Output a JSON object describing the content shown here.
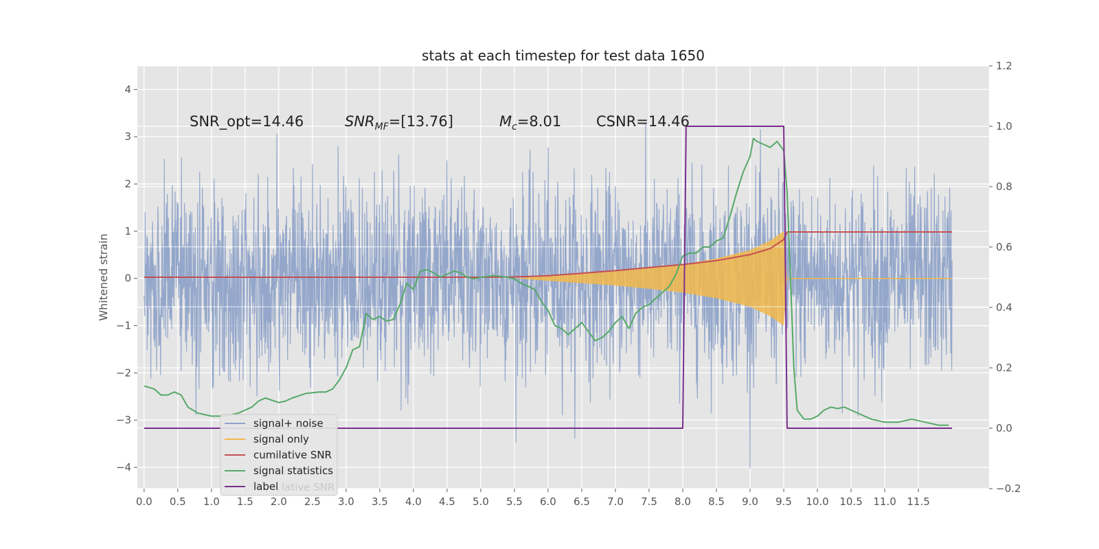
{
  "chart_data": {
    "type": "line",
    "title": "stats at each timestep for test data 1650",
    "ylabel": "Whitened strain",
    "xlabel": "",
    "xlim": [
      -0.1,
      12.55
    ],
    "ylim": [
      -4.45,
      4.5
    ],
    "y2lim": [
      -0.2,
      1.2
    ],
    "x_ticks": [
      "0.0",
      "0.5",
      "1.0",
      "1.5",
      "2.0",
      "2.5",
      "3.0",
      "3.5",
      "4.0",
      "4.5",
      "5.0",
      "5.5",
      "6.0",
      "6.5",
      "7.0",
      "7.5",
      "8.0",
      "8.5",
      "9.0",
      "9.5",
      "10.0",
      "10.5",
      "11.0",
      "11.5"
    ],
    "y_ticks": [
      "4",
      "3",
      "2",
      "1",
      "0",
      "−1",
      "−2",
      "−3",
      "−4"
    ],
    "y2_ticks": [
      "1.2",
      "1.0",
      "0.8",
      "0.6",
      "0.4",
      "0.2",
      "0.0",
      "−0.2"
    ],
    "grid": true,
    "legend_position": "lower-left",
    "annotations": [
      {
        "text": "SNR_opt=14.46"
      },
      {
        "text": "SNR_MF=[13.76]"
      },
      {
        "text": "M_c=8.01"
      },
      {
        "text": "CSNR=14.46"
      }
    ],
    "series": [
      {
        "name": "signal+ noise",
        "color": "#8fa3c9",
        "axis": "left",
        "x_range": [
          0.0,
          12.0
        ],
        "noise_std": 1.0
      },
      {
        "name": "signal only",
        "color": "#f2b84b",
        "axis": "left",
        "envelope_x": [
          5.5,
          6.0,
          6.5,
          7.0,
          7.5,
          8.0,
          8.5,
          9.0,
          9.3,
          9.5,
          9.55,
          12.0
        ],
        "envelope_y": [
          0.0,
          0.05,
          0.1,
          0.15,
          0.22,
          0.3,
          0.42,
          0.6,
          0.8,
          1.0,
          0.0,
          0.0
        ]
      },
      {
        "name": "cumilative SNR",
        "color": "#c44e52",
        "axis": "right",
        "x": [
          0.0,
          3.0,
          5.0,
          5.5,
          6.0,
          6.5,
          7.0,
          7.5,
          8.0,
          8.5,
          9.0,
          9.3,
          9.5,
          9.55,
          12.0
        ],
        "y": [
          0.5,
          0.5,
          0.5,
          0.501,
          0.505,
          0.513,
          0.522,
          0.532,
          0.542,
          0.555,
          0.575,
          0.595,
          0.625,
          0.65,
          0.65
        ]
      },
      {
        "name": "signal statistics",
        "color": "#55a868",
        "axis": "right",
        "x": [
          0.0,
          0.15,
          0.25,
          0.35,
          0.45,
          0.55,
          0.65,
          0.8,
          1.0,
          1.2,
          1.4,
          1.6,
          1.7,
          1.8,
          2.0,
          2.1,
          2.2,
          2.4,
          2.6,
          2.7,
          2.8,
          2.9,
          3.0,
          3.1,
          3.2,
          3.3,
          3.4,
          3.5,
          3.6,
          3.7,
          3.8,
          3.9,
          4.0,
          4.1,
          4.2,
          4.3,
          4.4,
          4.5,
          4.6,
          4.7,
          4.8,
          4.9,
          5.0,
          5.2,
          5.4,
          5.5,
          5.6,
          5.8,
          5.9,
          6.0,
          6.1,
          6.2,
          6.3,
          6.4,
          6.5,
          6.6,
          6.7,
          6.8,
          6.9,
          7.0,
          7.1,
          7.2,
          7.3,
          7.4,
          7.5,
          7.6,
          7.7,
          7.8,
          7.9,
          8.0,
          8.1,
          8.2,
          8.3,
          8.4,
          8.5,
          8.6,
          8.7,
          8.8,
          8.9,
          9.0,
          9.05,
          9.1,
          9.2,
          9.3,
          9.4,
          9.5,
          9.55,
          9.6,
          9.65,
          9.7,
          9.8,
          9.9,
          10.0,
          10.1,
          10.2,
          10.3,
          10.4,
          10.5,
          10.6,
          10.8,
          11.0,
          11.2,
          11.4,
          11.6,
          11.8,
          11.95
        ],
        "y": [
          0.14,
          0.13,
          0.11,
          0.11,
          0.12,
          0.11,
          0.07,
          0.05,
          0.04,
          0.04,
          0.05,
          0.07,
          0.09,
          0.1,
          0.085,
          0.09,
          0.1,
          0.115,
          0.12,
          0.12,
          0.13,
          0.16,
          0.2,
          0.26,
          0.27,
          0.38,
          0.36,
          0.37,
          0.355,
          0.36,
          0.41,
          0.48,
          0.46,
          0.52,
          0.525,
          0.515,
          0.5,
          0.51,
          0.52,
          0.515,
          0.5,
          0.495,
          0.5,
          0.505,
          0.5,
          0.495,
          0.48,
          0.46,
          0.42,
          0.39,
          0.34,
          0.33,
          0.31,
          0.33,
          0.35,
          0.32,
          0.29,
          0.3,
          0.32,
          0.35,
          0.37,
          0.33,
          0.38,
          0.4,
          0.41,
          0.43,
          0.45,
          0.47,
          0.51,
          0.57,
          0.58,
          0.58,
          0.6,
          0.6,
          0.62,
          0.63,
          0.7,
          0.78,
          0.85,
          0.9,
          0.96,
          0.95,
          0.94,
          0.93,
          0.95,
          0.92,
          0.78,
          0.5,
          0.2,
          0.06,
          0.03,
          0.03,
          0.04,
          0.06,
          0.07,
          0.065,
          0.07,
          0.06,
          0.05,
          0.03,
          0.02,
          0.02,
          0.03,
          0.02,
          0.01,
          0.01
        ]
      },
      {
        "name": "label",
        "color": "#7b2d8b",
        "axis": "right",
        "x": [
          0.0,
          8.0,
          8.05,
          9.5,
          9.55,
          12.0
        ],
        "y": [
          0.0,
          0.0,
          1.0,
          1.0,
          0.0,
          0.0
        ]
      }
    ],
    "legend_entries": [
      {
        "name": "signal+ noise",
        "color": "#8fa3c9"
      },
      {
        "name": "signal only",
        "color": "#f2b84b"
      },
      {
        "name": "cumilative SNR",
        "color": "#c44e52"
      },
      {
        "name": "signal statistics",
        "color": "#55a868"
      },
      {
        "name": "label",
        "color": "#7b2d8b"
      }
    ],
    "legend_overlap_text": "lative SNR"
  }
}
